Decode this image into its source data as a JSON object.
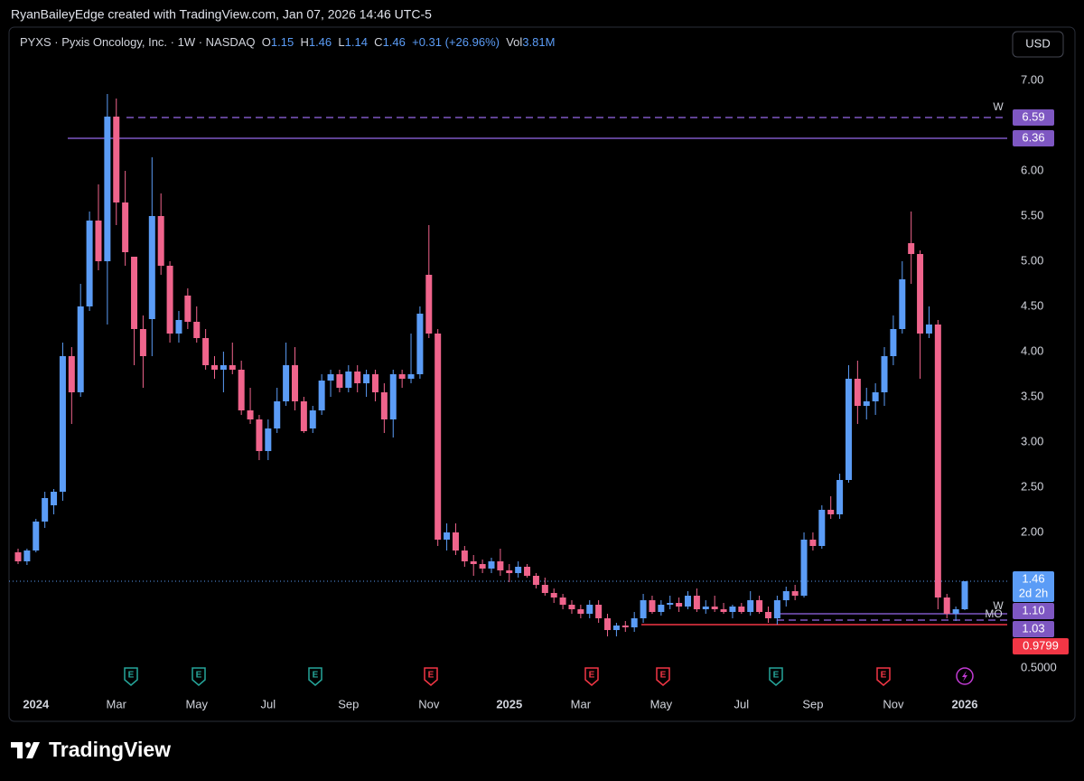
{
  "header": {
    "credit": "RyanBaileyEdge created with TradingView.com, Jan 07, 2026 14:46 UTC-5"
  },
  "toolbar": {
    "currency": "USD"
  },
  "legend": {
    "open_label": "O",
    "high_label": "H",
    "low_label": "L",
    "close_label": "C",
    "change": "+0.31 (+26.96%)",
    "volume_label": "Vol",
    "volume": "3.81M"
  },
  "footer": {
    "brand": "TradingView"
  },
  "chart_data": {
    "type": "candlestick",
    "title": "PYXS · Pyxis Oncology, Inc. · 1W · NASDAQ",
    "up_color": "#5b9cf6",
    "down_color": "#f0648c",
    "categories": [
      null,
      null,
      "2024",
      null,
      null,
      null,
      null,
      null,
      null,
      null,
      null,
      "Mar",
      null,
      null,
      null,
      null,
      null,
      null,
      null,
      null,
      "May",
      null,
      null,
      null,
      null,
      null,
      null,
      null,
      "Jul",
      null,
      null,
      null,
      null,
      null,
      null,
      null,
      null,
      "Sep",
      null,
      null,
      null,
      null,
      null,
      null,
      null,
      null,
      "Nov",
      null,
      null,
      null,
      null,
      null,
      null,
      null,
      null,
      "2025",
      null,
      null,
      null,
      null,
      null,
      null,
      null,
      "Mar",
      null,
      null,
      null,
      null,
      null,
      null,
      null,
      null,
      "May",
      null,
      null,
      null,
      null,
      null,
      null,
      null,
      null,
      "Jul",
      null,
      null,
      null,
      null,
      null,
      null,
      null,
      "Sep",
      null,
      null,
      null,
      null,
      null,
      null,
      null,
      null,
      "Nov",
      null,
      null,
      null,
      null,
      null,
      null,
      null,
      "2026"
    ],
    "open": [
      1.78,
      1.68,
      1.8,
      2.12,
      2.3,
      2.45,
      3.95,
      3.55,
      4.5,
      5.45,
      5.0,
      6.6,
      5.65,
      5.05,
      4.25,
      4.36,
      5.5,
      4.95,
      4.2,
      4.62,
      4.33,
      4.15,
      3.85,
      3.8,
      3.85,
      3.8,
      3.35,
      3.25,
      2.9,
      3.15,
      3.45,
      3.85,
      3.45,
      3.15,
      3.35,
      3.68,
      3.75,
      3.6,
      3.78,
      3.65,
      3.75,
      3.55,
      3.25,
      3.75,
      3.7,
      3.75,
      4.85,
      4.2,
      1.92,
      2.0,
      1.8,
      1.68,
      1.65,
      1.6,
      1.68,
      1.58,
      1.55,
      1.62,
      1.52,
      1.42,
      1.33,
      1.28,
      1.2,
      1.15,
      1.1,
      1.2,
      1.05,
      0.92,
      0.97,
      0.95,
      1.05,
      1.25,
      1.12,
      1.2,
      1.22,
      1.18,
      1.3,
      1.15,
      1.18,
      1.15,
      1.12,
      1.18,
      1.12,
      1.25,
      1.12,
      1.05,
      1.25,
      1.35,
      1.3,
      1.92,
      1.85,
      2.25,
      2.2,
      2.58,
      3.7,
      3.4,
      3.45,
      3.55,
      3.95,
      4.25,
      5.2,
      5.08,
      4.2,
      4.3,
      1.28,
      1.1,
      1.15
    ],
    "high": [
      1.82,
      1.82,
      2.15,
      2.45,
      2.48,
      4.1,
      4.05,
      4.75,
      5.55,
      5.85,
      6.85,
      6.8,
      6.0,
      5.05,
      4.4,
      6.15,
      5.75,
      5.0,
      4.45,
      4.7,
      4.5,
      4.25,
      3.95,
      4.0,
      4.1,
      3.9,
      3.6,
      3.3,
      3.25,
      3.6,
      4.1,
      4.05,
      3.5,
      3.4,
      3.75,
      3.8,
      3.8,
      3.85,
      3.85,
      3.8,
      3.8,
      3.65,
      3.8,
      3.8,
      4.2,
      4.5,
      5.4,
      4.25,
      2.1,
      2.1,
      1.85,
      1.75,
      1.7,
      1.72,
      1.82,
      1.65,
      1.68,
      1.65,
      1.55,
      1.5,
      1.38,
      1.32,
      1.25,
      1.2,
      1.25,
      1.25,
      1.1,
      1.0,
      1.02,
      1.12,
      1.32,
      1.3,
      1.25,
      1.3,
      1.28,
      1.35,
      1.38,
      1.25,
      1.3,
      1.22,
      1.2,
      1.22,
      1.35,
      1.3,
      1.18,
      1.3,
      1.4,
      1.42,
      2.0,
      2.0,
      2.3,
      2.4,
      2.65,
      3.85,
      3.9,
      3.6,
      3.65,
      4.05,
      4.4,
      5.0,
      5.55,
      5.12,
      4.5,
      4.35,
      1.32,
      1.18,
      1.46
    ],
    "low": [
      1.65,
      1.64,
      1.78,
      2.05,
      2.2,
      2.35,
      3.2,
      3.5,
      4.45,
      4.9,
      4.3,
      5.4,
      4.95,
      3.85,
      3.6,
      3.95,
      4.85,
      4.1,
      4.1,
      4.25,
      4.1,
      3.8,
      3.7,
      3.55,
      3.75,
      3.3,
      3.2,
      2.8,
      2.8,
      3.1,
      3.4,
      3.35,
      3.1,
      3.1,
      3.3,
      3.5,
      3.55,
      3.55,
      3.55,
      3.5,
      3.45,
      3.1,
      3.05,
      3.6,
      3.65,
      3.7,
      4.15,
      1.85,
      1.8,
      1.75,
      1.62,
      1.52,
      1.55,
      1.55,
      1.52,
      1.45,
      1.5,
      1.5,
      1.38,
      1.3,
      1.22,
      1.15,
      1.1,
      1.05,
      1.05,
      1.0,
      0.85,
      0.85,
      0.9,
      0.9,
      1.0,
      1.1,
      1.08,
      1.15,
      1.12,
      1.15,
      1.12,
      1.1,
      1.12,
      1.1,
      1.05,
      1.1,
      1.08,
      1.1,
      1.0,
      0.98,
      1.18,
      1.25,
      1.28,
      1.8,
      1.82,
      2.15,
      2.15,
      2.55,
      3.2,
      3.25,
      3.3,
      3.4,
      3.85,
      4.2,
      4.75,
      3.7,
      4.15,
      1.15,
      1.05,
      1.02,
      1.14
    ],
    "close": [
      1.68,
      1.8,
      2.12,
      2.38,
      2.45,
      3.95,
      3.55,
      4.5,
      5.45,
      5.0,
      6.6,
      5.65,
      5.1,
      4.25,
      3.95,
      5.5,
      4.95,
      4.2,
      4.35,
      4.33,
      4.15,
      3.85,
      3.8,
      3.85,
      3.8,
      3.35,
      3.25,
      2.9,
      3.15,
      3.45,
      3.85,
      3.45,
      3.12,
      3.35,
      3.68,
      3.75,
      3.6,
      3.78,
      3.65,
      3.75,
      3.55,
      3.25,
      3.75,
      3.7,
      3.75,
      4.42,
      4.2,
      1.92,
      2.0,
      1.8,
      1.68,
      1.65,
      1.6,
      1.68,
      1.58,
      1.55,
      1.62,
      1.52,
      1.42,
      1.33,
      1.28,
      1.2,
      1.15,
      1.1,
      1.2,
      1.05,
      0.92,
      0.97,
      0.95,
      1.05,
      1.25,
      1.12,
      1.2,
      1.22,
      1.18,
      1.3,
      1.15,
      1.18,
      1.15,
      1.12,
      1.18,
      1.12,
      1.25,
      1.12,
      1.05,
      1.25,
      1.35,
      1.3,
      1.92,
      1.85,
      2.25,
      2.2,
      2.58,
      3.7,
      3.4,
      3.45,
      3.55,
      3.95,
      4.25,
      4.8,
      5.08,
      4.2,
      4.3,
      1.28,
      1.1,
      1.15,
      1.46
    ],
    "ylim": [
      0.24,
      7.24
    ],
    "yticks": [
      {
        "value": 0.5,
        "label": "0.5000"
      },
      {
        "value": 2,
        "label": "2.00"
      },
      {
        "value": 2.5,
        "label": "2.50"
      },
      {
        "value": 3,
        "label": "3.00"
      },
      {
        "value": 3.5,
        "label": "3.50"
      },
      {
        "value": 4,
        "label": "4.00"
      },
      {
        "value": 4.5,
        "label": "4.50"
      },
      {
        "value": 5,
        "label": "5.00"
      },
      {
        "value": 5.5,
        "label": "5.50"
      },
      {
        "value": 6,
        "label": "6.00"
      },
      {
        "value": 7,
        "label": "7.00"
      }
    ],
    "grid": false,
    "levels": [
      {
        "value": 6.59,
        "color": "#7e57c2",
        "style": "dashed",
        "tag": "W"
      },
      {
        "value": 6.36,
        "color": "#7e57c2",
        "style": "solid"
      },
      {
        "value": 1.1,
        "label": "1.10",
        "color": "#7e57c2",
        "style": "solid",
        "tag": "W"
      },
      {
        "value": 1.03,
        "color": "#7e57c2",
        "style": "dashed",
        "tag": "MO"
      },
      {
        "value": 0.9799,
        "color": "#f23645",
        "style": "solid"
      }
    ],
    "last_price": {
      "value": 1.46,
      "countdown": "2d 2h",
      "color": "#5b9cf6"
    },
    "events": [
      {
        "label": "E",
        "color": "#26a69a"
      },
      {
        "label": "E",
        "color": "#26a69a"
      },
      {
        "label": "E",
        "color": "#26a69a"
      },
      {
        "label": "E",
        "color": "#f23645"
      },
      {
        "label": "E",
        "color": "#f23645"
      },
      {
        "label": "E",
        "color": "#f23645"
      },
      {
        "label": "E",
        "color": "#26a69a"
      },
      {
        "label": "E",
        "color": "#f23645"
      },
      {
        "color": "#c23bd4"
      }
    ]
  }
}
